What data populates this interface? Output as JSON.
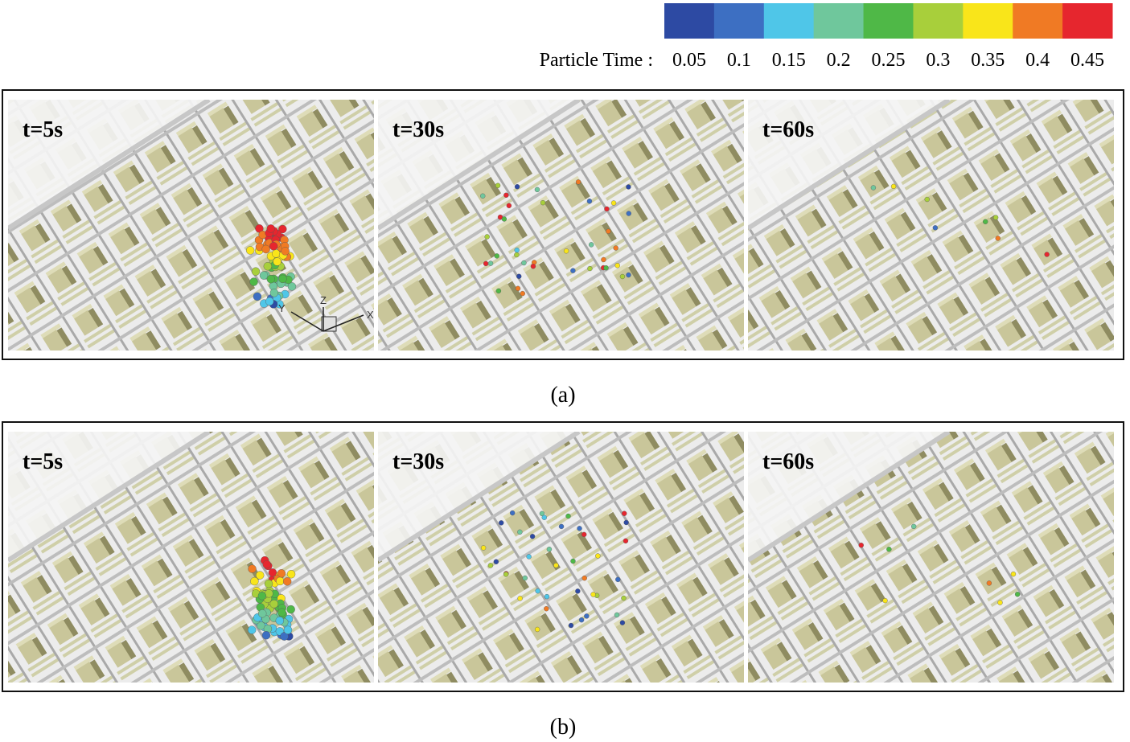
{
  "colorbar": {
    "label": "Particle Time :",
    "ticks": [
      0.05,
      0.1,
      0.15,
      0.2,
      0.25,
      0.3,
      0.35,
      0.4,
      0.45
    ],
    "colors": [
      "#2d4aa3",
      "#3d6fc2",
      "#4fc6e8",
      "#6fc79c",
      "#4fb847",
      "#a8cf3b",
      "#f9e51a",
      "#f07a24",
      "#e6262e"
    ]
  },
  "axis_labels": {
    "y": "Y",
    "z": "Z",
    "x": "X"
  },
  "panels": [
    {
      "caption": "(a)",
      "frames": [
        "t=5s",
        "t=30s",
        "t=60s"
      ]
    },
    {
      "caption": "(b)",
      "frames": [
        "t=5s",
        "t=30s",
        "t=60s"
      ]
    }
  ]
}
